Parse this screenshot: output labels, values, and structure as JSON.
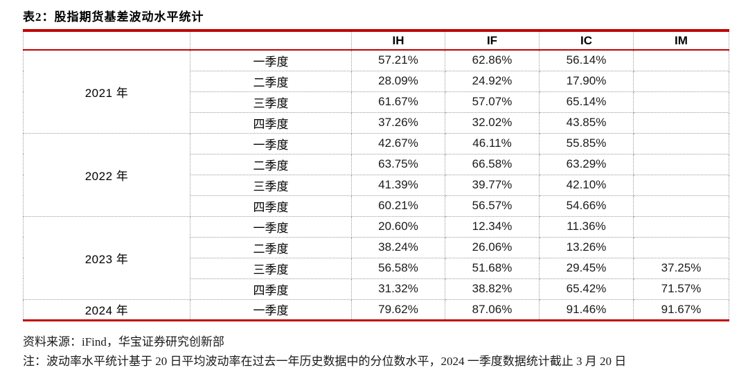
{
  "title": "表2：股指期货基差波动水平统计",
  "colors": {
    "accent_red": "#C00000",
    "grid_dotted": "#9a9a9a",
    "text": "#1a1a1a"
  },
  "table": {
    "headers": [
      "",
      "",
      "IH",
      "IF",
      "IC",
      "IM"
    ],
    "groups": [
      {
        "year": "2021 年",
        "rows": [
          {
            "quarter": "一季度",
            "values": [
              "57.21%",
              "62.86%",
              "56.14%",
              ""
            ]
          },
          {
            "quarter": "二季度",
            "values": [
              "28.09%",
              "24.92%",
              "17.90%",
              ""
            ]
          },
          {
            "quarter": "三季度",
            "values": [
              "61.67%",
              "57.07%",
              "65.14%",
              ""
            ]
          },
          {
            "quarter": "四季度",
            "values": [
              "37.26%",
              "32.02%",
              "43.85%",
              ""
            ]
          }
        ]
      },
      {
        "year": "2022 年",
        "rows": [
          {
            "quarter": "一季度",
            "values": [
              "42.67%",
              "46.11%",
              "55.85%",
              ""
            ]
          },
          {
            "quarter": "二季度",
            "values": [
              "63.75%",
              "66.58%",
              "63.29%",
              ""
            ]
          },
          {
            "quarter": "三季度",
            "values": [
              "41.39%",
              "39.77%",
              "42.10%",
              ""
            ]
          },
          {
            "quarter": "四季度",
            "values": [
              "60.21%",
              "56.57%",
              "54.66%",
              ""
            ]
          }
        ]
      },
      {
        "year": "2023 年",
        "rows": [
          {
            "quarter": "一季度",
            "values": [
              "20.60%",
              "12.34%",
              "11.36%",
              ""
            ]
          },
          {
            "quarter": "二季度",
            "values": [
              "38.24%",
              "26.06%",
              "13.26%",
              ""
            ]
          },
          {
            "quarter": "三季度",
            "values": [
              "56.58%",
              "51.68%",
              "29.45%",
              "37.25%"
            ]
          },
          {
            "quarter": "四季度",
            "values": [
              "31.32%",
              "38.82%",
              "65.42%",
              "71.57%"
            ]
          }
        ]
      },
      {
        "year": "2024 年",
        "rows": [
          {
            "quarter": "一季度",
            "values": [
              "79.62%",
              "87.06%",
              "91.46%",
              "91.67%"
            ]
          }
        ]
      }
    ]
  },
  "footer": {
    "source": "资料来源：iFind，华宝证券研究创新部",
    "note": "注：波动率水平统计基于 20 日平均波动率在过去一年历史数据中的分位数水平，2024 一季度数据统计截止 3 月 20 日"
  }
}
